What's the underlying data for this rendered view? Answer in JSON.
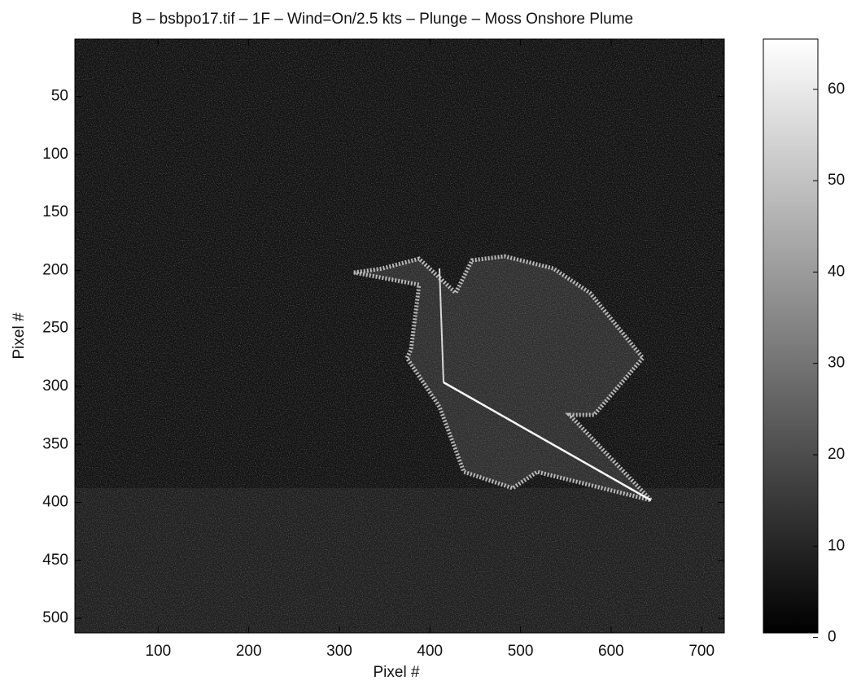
{
  "chart_data": {
    "type": "image",
    "title": "B – bsbpo17.tif – 1F –  Wind=On/2.5 kts –  Plunge  – Moss  Onshore Plume",
    "xlabel": "Pixel #",
    "ylabel": "Pixel #",
    "xlim": [
      8,
      725
    ],
    "xticks": [
      100,
      200,
      300,
      400,
      500,
      600,
      700
    ],
    "ylim": [
      0.5,
      512.5
    ],
    "yticks": [
      50,
      100,
      150,
      200,
      250,
      300,
      350,
      400,
      450,
      500
    ],
    "colormap": "gray",
    "clim": [
      0.5,
      65.5
    ],
    "cticks": [
      0,
      10,
      20,
      30,
      40,
      50,
      60
    ]
  }
}
